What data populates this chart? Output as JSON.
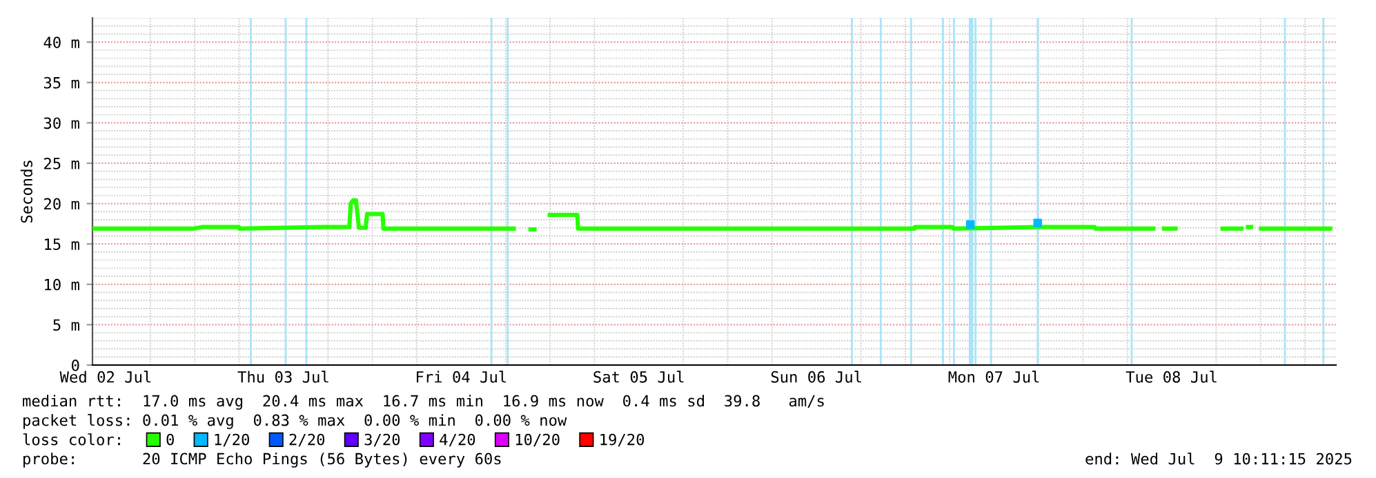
{
  "chart_data": {
    "type": "line",
    "ylabel": "Seconds",
    "xlim": [
      "2025-07-02T10:11",
      "2025-07-09T10:11"
    ],
    "xticks": [
      {
        "value": "2025-07-02T12:00",
        "label": "Wed 02 Jul"
      },
      {
        "value": "2025-07-03T12:00",
        "label": "Thu 03 Jul"
      },
      {
        "value": "2025-07-04T12:00",
        "label": "Fri 04 Jul"
      },
      {
        "value": "2025-07-05T12:00",
        "label": "Sat 05 Jul"
      },
      {
        "value": "2025-07-06T12:00",
        "label": "Sun 06 Jul"
      },
      {
        "value": "2025-07-07T12:00",
        "label": "Mon 07 Jul"
      },
      {
        "value": "2025-07-08T12:00",
        "label": "Tue 08 Jul"
      }
    ],
    "ylim": [
      0,
      43
    ],
    "yticks": [
      0,
      {
        "value": 5,
        "label": "5 m"
      },
      {
        "value": 10,
        "label": "10 m"
      },
      {
        "value": 15,
        "label": "15 m"
      },
      {
        "value": 20,
        "label": "20 m"
      },
      {
        "value": 25,
        "label": "25 m"
      },
      {
        "value": 30,
        "label": "30 m"
      },
      {
        "value": 35,
        "label": "35 m"
      },
      {
        "value": 40,
        "label": "40 m"
      }
    ],
    "grid": true,
    "legend": "bottom",
    "legend_title": "loss color:",
    "series": [
      {
        "name": "0",
        "color": "#26ff00",
        "x": [
          "2025-07-02T10:11",
          "2025-07-02T23:45",
          "2025-07-03T01:05",
          "2025-07-03T05:58",
          "2025-07-03T06:00",
          "2025-07-03T17:11",
          "2025-07-03T20:53",
          "2025-07-03T21:05",
          "2025-07-03T21:23",
          "2025-07-03T21:47",
          "2025-07-03T22:11",
          "2025-07-03T23:05",
          "2025-07-03T23:17",
          "2025-07-04T01:23",
          "2025-07-04T01:29",
          "2025-07-04T19:23",
          "2025-07-04T19:30",
          "2025-07-04T21:05",
          "2025-07-04T22:11",
          "2025-07-04T22:20",
          "2025-07-04T23:41",
          "2025-07-05T03:41",
          "2025-07-05T03:47",
          "2025-07-07T01:15",
          "2025-07-07T01:17",
          "2025-07-07T06:23",
          "2025-07-07T06:30",
          "2025-07-07T18:05",
          "2025-07-07T18:10",
          "2025-07-08T01:35",
          "2025-07-08T01:40",
          "2025-07-08T09:47",
          "2025-07-08T10:00",
          "2025-07-08T10:41",
          "2025-07-08T12:47",
          "2025-07-08T13:00",
          "2025-07-08T18:35",
          "2025-07-08T21:41",
          "2025-07-08T21:50",
          "2025-07-08T22:00",
          "2025-07-08T23:00",
          "2025-07-08T23:10",
          "2025-07-08T23:47",
          "2025-07-09T09:41"
        ],
        "values": [
          16.9,
          16.9,
          17.1,
          17.1,
          16.9,
          17.1,
          17.1,
          20.0,
          20.4,
          20.4,
          17.0,
          17.0,
          18.7,
          18.7,
          16.9,
          16.9,
          null,
          16.8,
          16.8,
          null,
          18.6,
          18.6,
          16.9,
          16.9,
          17.1,
          17.1,
          16.9,
          17.1,
          17.1,
          17.1,
          16.9,
          16.9,
          null,
          16.9,
          16.9,
          null,
          16.9,
          16.9,
          null,
          17.1,
          17.1,
          null,
          16.9,
          16.9
        ]
      },
      {
        "name": "1/20",
        "color": "#00b8ff",
        "type": "scatter",
        "x": [
          "2025-07-07T08:47",
          "2025-07-07T17:53"
        ],
        "values": [
          17.4,
          17.6
        ]
      },
      {
        "name": "2/20",
        "color": "#0059ff"
      },
      {
        "name": "3/20",
        "color": "#5e00ff"
      },
      {
        "name": "4/20",
        "color": "#7e00ff"
      },
      {
        "name": "10/20",
        "color": "#dd00ff"
      },
      {
        "name": "19/20",
        "color": "#ff0000"
      }
    ],
    "ref_lines": [
      {
        "axis": "x",
        "value": "2025-07-03T07:35",
        "color": "#a8e4f8"
      },
      {
        "axis": "x",
        "value": "2025-07-03T12:17",
        "color": "#a8e4f8"
      },
      {
        "axis": "x",
        "value": "2025-07-03T15:05",
        "color": "#a8e4f8"
      },
      {
        "axis": "x",
        "value": "2025-07-04T16:05",
        "color": "#a8e4f8"
      },
      {
        "axis": "x",
        "value": "2025-07-04T18:17",
        "color": "#a8e4f8"
      },
      {
        "axis": "x",
        "value": "2025-07-06T16:47",
        "color": "#a8e4f8"
      },
      {
        "axis": "x",
        "value": "2025-07-06T20:41",
        "color": "#a8e4f8"
      },
      {
        "axis": "x",
        "value": "2025-07-07T00:47",
        "color": "#a8e4f8"
      },
      {
        "axis": "x",
        "value": "2025-07-07T05:05",
        "color": "#a8e4f8"
      },
      {
        "axis": "x",
        "value": "2025-07-07T06:35",
        "color": "#a8e4f8"
      },
      {
        "axis": "x",
        "value": "2025-07-07T09:29",
        "color": "#a8e4f8"
      },
      {
        "axis": "x",
        "value": "2025-07-07T11:35",
        "color": "#a8e4f8"
      },
      {
        "axis": "x",
        "value": "2025-07-07T17:53",
        "color": "#a8e4f8"
      },
      {
        "axis": "x",
        "value": "2025-07-08T06:35",
        "color": "#a8e4f8"
      },
      {
        "axis": "x",
        "value": "2025-07-09T03:17",
        "color": "#a8e4f8"
      },
      {
        "axis": "x",
        "value": "2025-07-09T08:29",
        "color": "#a8e4f8"
      }
    ],
    "bands": [
      {
        "axis": "x",
        "from": "2025-07-07T08:35",
        "to": "2025-07-07T09:11",
        "color": "#a8e4f8"
      }
    ],
    "annotations": [
      "median rtt:  17.0 ms avg  20.4 ms max  16.7 ms min  16.9 ms now  0.4 ms sd  39.8   am/s",
      "packet loss: 0.01 % avg  0.83 % max  0.00 % min  0.00 % now",
      "probe:       20 ICMP Echo Pings (56 Bytes) every 60s",
      "end: Wed Jul  9 10:11:15 2025"
    ]
  }
}
